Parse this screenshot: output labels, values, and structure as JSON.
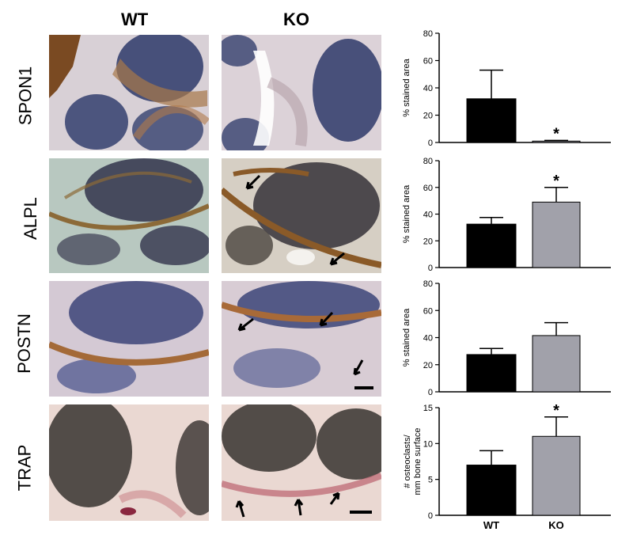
{
  "columns": {
    "wt": "WT",
    "ko": "KO"
  },
  "rows": [
    "SPON1",
    "ALPL",
    "POSTN",
    "TRAP"
  ],
  "colors": {
    "wt_bar": "#000000",
    "ko_bar": "#a1a1aa"
  },
  "chart_data": [
    {
      "type": "bar",
      "categories": [
        "WT",
        "KO"
      ],
      "values": [
        32,
        1
      ],
      "errors": [
        21,
        0.5
      ],
      "ylabel": "% stained area",
      "ylim": [
        0,
        80
      ],
      "yticks": [
        "0",
        "20",
        "40",
        "60",
        "80"
      ],
      "significance": [
        "",
        "*"
      ]
    },
    {
      "type": "bar",
      "categories": [
        "WT",
        "KO"
      ],
      "values": [
        32.5,
        49
      ],
      "errors": [
        5,
        11
      ],
      "ylabel": "% stained area",
      "ylim": [
        0,
        80
      ],
      "yticks": [
        "0",
        "20",
        "40",
        "60",
        "80"
      ],
      "significance": [
        "",
        "*"
      ]
    },
    {
      "type": "bar",
      "categories": [
        "WT",
        "KO"
      ],
      "values": [
        27.5,
        41.5
      ],
      "errors": [
        4.5,
        9.5
      ],
      "ylabel": "% stained area",
      "ylim": [
        0,
        80
      ],
      "yticks": [
        "0",
        "20",
        "40",
        "60",
        "80"
      ],
      "significance": [
        "",
        ""
      ]
    },
    {
      "type": "bar",
      "categories": [
        "WT",
        "KO"
      ],
      "values": [
        7,
        11
      ],
      "errors": [
        2,
        2.7
      ],
      "ylabel": "# osteoclasts/ mm bone surface",
      "ylabel_lines": [
        "# osteoclasts/",
        "mm bone surface"
      ],
      "ylim": [
        0,
        15
      ],
      "yticks": [
        "0",
        "5",
        "10",
        "15"
      ],
      "significance": [
        "",
        "*"
      ]
    }
  ]
}
